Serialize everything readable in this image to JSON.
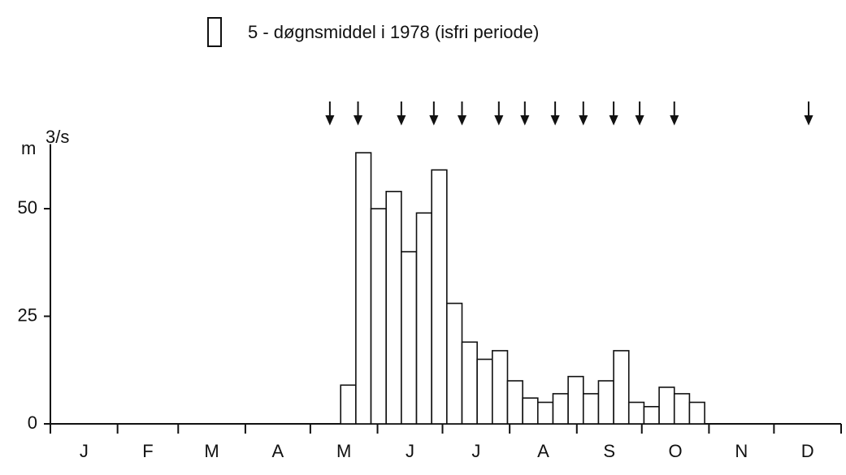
{
  "chart_data": {
    "type": "histogram",
    "legend_label": "5 - døgnsmiddel i 1978 (isfri periode)",
    "y_label_unit": "m",
    "y_label_super": "3/s",
    "bins": [
      134,
      141,
      148,
      155,
      162,
      169,
      176,
      183,
      190,
      197,
      204,
      211,
      218,
      225,
      232,
      239,
      246,
      253,
      260,
      267,
      274,
      281,
      288,
      295,
      302
    ],
    "values": [
      9,
      63,
      50,
      54,
      40,
      49,
      59,
      28,
      19,
      15,
      17,
      10,
      6,
      5,
      7,
      11,
      7,
      10,
      17,
      5,
      4,
      8.5,
      7,
      5
    ],
    "color": "#ffffff",
    "xlim": [
      0,
      365
    ],
    "ylim": [
      0,
      65
    ],
    "yticks": [
      0,
      25,
      50
    ],
    "month_bounds": [
      0,
      31,
      59,
      90,
      120,
      151,
      181,
      212,
      243,
      273,
      304,
      334,
      365
    ],
    "months": [
      "J",
      "F",
      "M",
      "A",
      "M",
      "J",
      "J",
      "A",
      "S",
      "O",
      "N",
      "D"
    ],
    "sample_dates": [
      129,
      142,
      162,
      177,
      190,
      207,
      219,
      233,
      246,
      260,
      272,
      288,
      350
    ]
  }
}
